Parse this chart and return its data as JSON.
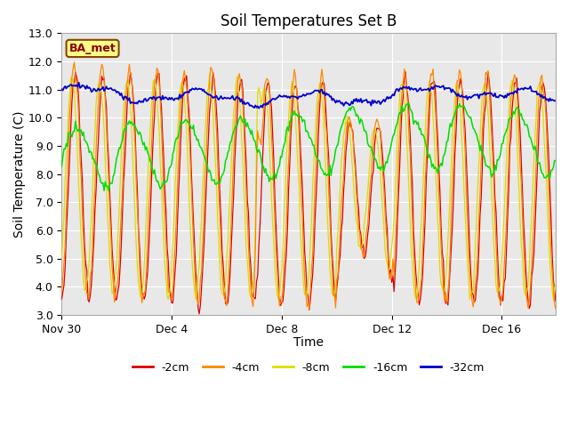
{
  "title": "Soil Temperatures Set B",
  "xlabel": "Time",
  "ylabel": "Soil Temperature (C)",
  "ylim": [
    3.0,
    13.0
  ],
  "yticks": [
    3.0,
    4.0,
    5.0,
    6.0,
    7.0,
    8.0,
    9.0,
    10.0,
    11.0,
    12.0,
    13.0
  ],
  "xtick_labels": [
    "Nov 30",
    "Dec 4",
    "Dec 8",
    "Dec 12",
    "Dec 16"
  ],
  "xtick_positions": [
    0,
    96,
    192,
    288,
    384
  ],
  "total_points": 432,
  "colors": {
    "2cm": "#dd0000",
    "4cm": "#ff8800",
    "8cm": "#dddd00",
    "16cm": "#00dd00",
    "32cm": "#0000cc"
  },
  "legend_labels": [
    "-2cm",
    "-4cm",
    "-8cm",
    "-16cm",
    "-32cm"
  ],
  "fig_bg_color": "#ffffff",
  "plot_bg_color": "#e8e8e8",
  "annotation_text": "BA_met",
  "annotation_box_color": "#ffff88",
  "annotation_text_color": "#880000",
  "annotation_border_color": "#884400",
  "grid_color": "#ffffff",
  "title_fontsize": 12,
  "axis_label_fontsize": 10,
  "tick_fontsize": 9
}
